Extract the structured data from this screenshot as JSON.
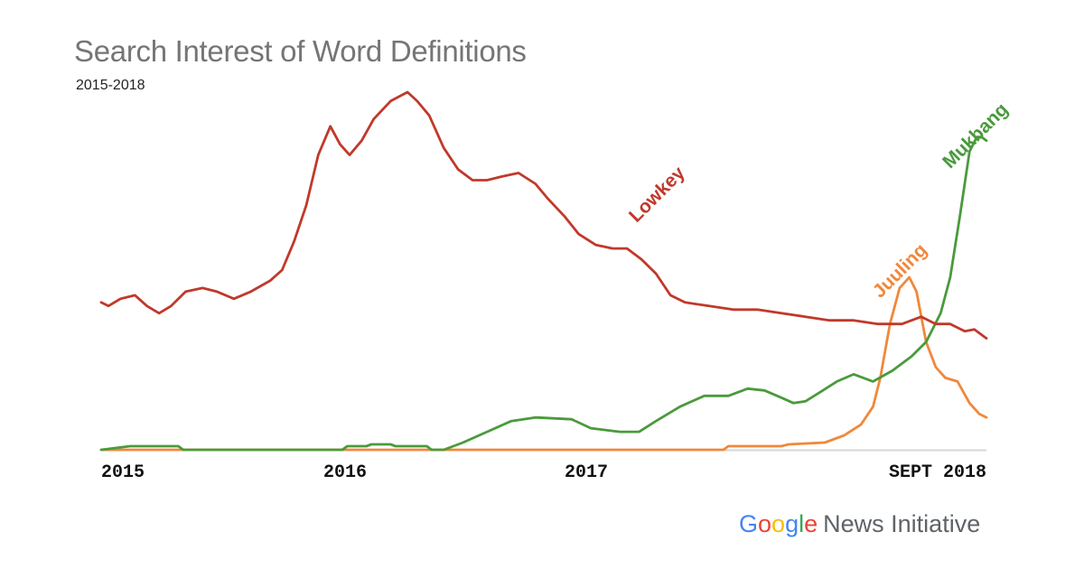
{
  "title": "Search Interest of Word Definitions",
  "subtitle": "2015-2018",
  "branding": {
    "google": "Google",
    "rest": "News Initiative",
    "google_colors": [
      "#4285F4",
      "#EA4335",
      "#FBBC05",
      "#4285F4",
      "#34A853",
      "#EA4335"
    ]
  },
  "chart_data": {
    "type": "line",
    "title": "Search Interest of Word Definitions",
    "subtitle": "2015-2018",
    "x_ticks": [
      "2015",
      "2016",
      "2017",
      "SEPT 2018"
    ],
    "x_tick_positions": [
      0,
      1,
      2,
      3.67
    ],
    "xlim": [
      0,
      3.67
    ],
    "ylim": [
      0,
      100
    ],
    "grid": false,
    "legend": "none",
    "series": [
      {
        "name": "Lowkey",
        "color": "#C0392B",
        "points": [
          [
            0,
            41
          ],
          [
            0.03,
            40
          ],
          [
            0.08,
            42
          ],
          [
            0.14,
            43
          ],
          [
            0.19,
            40
          ],
          [
            0.24,
            38
          ],
          [
            0.29,
            40
          ],
          [
            0.35,
            44
          ],
          [
            0.42,
            45
          ],
          [
            0.48,
            44
          ],
          [
            0.55,
            42
          ],
          [
            0.62,
            44
          ],
          [
            0.7,
            47
          ],
          [
            0.75,
            50
          ],
          [
            0.8,
            58
          ],
          [
            0.85,
            68
          ],
          [
            0.9,
            82
          ],
          [
            0.95,
            90
          ],
          [
            0.99,
            85
          ],
          [
            1.03,
            82
          ],
          [
            1.08,
            86
          ],
          [
            1.13,
            92
          ],
          [
            1.2,
            97
          ],
          [
            1.27,
            99.5
          ],
          [
            1.31,
            97
          ],
          [
            1.36,
            93
          ],
          [
            1.42,
            84
          ],
          [
            1.48,
            78
          ],
          [
            1.54,
            75
          ],
          [
            1.6,
            75
          ],
          [
            1.66,
            76
          ],
          [
            1.73,
            77
          ],
          [
            1.8,
            74
          ],
          [
            1.85,
            70
          ],
          [
            1.92,
            65
          ],
          [
            1.98,
            60
          ],
          [
            2.05,
            57
          ],
          [
            2.12,
            56
          ],
          [
            2.18,
            56
          ],
          [
            2.24,
            53
          ],
          [
            2.3,
            49
          ],
          [
            2.36,
            43
          ],
          [
            2.42,
            41
          ],
          [
            2.52,
            40
          ],
          [
            2.62,
            39
          ],
          [
            2.72,
            39
          ],
          [
            2.82,
            38
          ],
          [
            2.92,
            37
          ],
          [
            3.02,
            36
          ],
          [
            3.12,
            36
          ],
          [
            3.22,
            35
          ],
          [
            3.32,
            35
          ],
          [
            3.4,
            37
          ],
          [
            3.46,
            35
          ],
          [
            3.52,
            35
          ],
          [
            3.58,
            33
          ],
          [
            3.62,
            33.5
          ],
          [
            3.67,
            31
          ]
        ]
      },
      {
        "name": "Juuling",
        "color": "#F0883B",
        "points": [
          [
            0,
            0
          ],
          [
            2.58,
            0
          ],
          [
            2.6,
            1
          ],
          [
            2.82,
            1
          ],
          [
            2.85,
            1.5
          ],
          [
            3.0,
            2
          ],
          [
            3.08,
            4
          ],
          [
            3.15,
            7
          ],
          [
            3.2,
            12
          ],
          [
            3.23,
            20
          ],
          [
            3.27,
            35
          ],
          [
            3.31,
            45
          ],
          [
            3.35,
            48
          ],
          [
            3.38,
            44
          ],
          [
            3.42,
            30
          ],
          [
            3.46,
            23
          ],
          [
            3.5,
            20
          ],
          [
            3.55,
            19
          ],
          [
            3.6,
            13
          ],
          [
            3.64,
            10
          ],
          [
            3.67,
            9
          ]
        ]
      },
      {
        "name": "Mukbang",
        "color": "#4A9A3C",
        "points": [
          [
            0,
            0
          ],
          [
            0.12,
            1
          ],
          [
            0.32,
            1
          ],
          [
            0.34,
            0
          ],
          [
            1.0,
            0
          ],
          [
            1.02,
            1
          ],
          [
            1.1,
            1
          ],
          [
            1.12,
            1.5
          ],
          [
            1.2,
            1.5
          ],
          [
            1.22,
            1
          ],
          [
            1.35,
            1
          ],
          [
            1.37,
            0
          ],
          [
            1.42,
            0
          ],
          [
            1.5,
            2
          ],
          [
            1.6,
            5
          ],
          [
            1.7,
            8
          ],
          [
            1.8,
            9
          ],
          [
            1.95,
            8.5
          ],
          [
            2.03,
            6
          ],
          [
            2.15,
            5
          ],
          [
            2.23,
            5
          ],
          [
            2.3,
            8
          ],
          [
            2.4,
            12
          ],
          [
            2.5,
            15
          ],
          [
            2.6,
            15
          ],
          [
            2.68,
            17
          ],
          [
            2.75,
            16.5
          ],
          [
            2.82,
            14.5
          ],
          [
            2.87,
            13
          ],
          [
            2.92,
            13.5
          ],
          [
            2.98,
            16
          ],
          [
            3.05,
            19
          ],
          [
            3.12,
            21
          ],
          [
            3.2,
            19
          ],
          [
            3.28,
            22
          ],
          [
            3.36,
            26
          ],
          [
            3.42,
            30
          ],
          [
            3.48,
            38
          ],
          [
            3.52,
            48
          ],
          [
            3.56,
            65
          ],
          [
            3.6,
            83
          ],
          [
            3.63,
            87
          ],
          [
            3.65,
            87
          ],
          [
            3.67,
            86
          ]
        ]
      }
    ],
    "annotations": [
      {
        "text": "Lowkey",
        "series": "Lowkey",
        "color": "#C0392B"
      },
      {
        "text": "Juuling",
        "series": "Juuling",
        "color": "#F0883B"
      },
      {
        "text": "Mukbang",
        "series": "Mukbang",
        "color": "#4A9A3C"
      }
    ]
  }
}
